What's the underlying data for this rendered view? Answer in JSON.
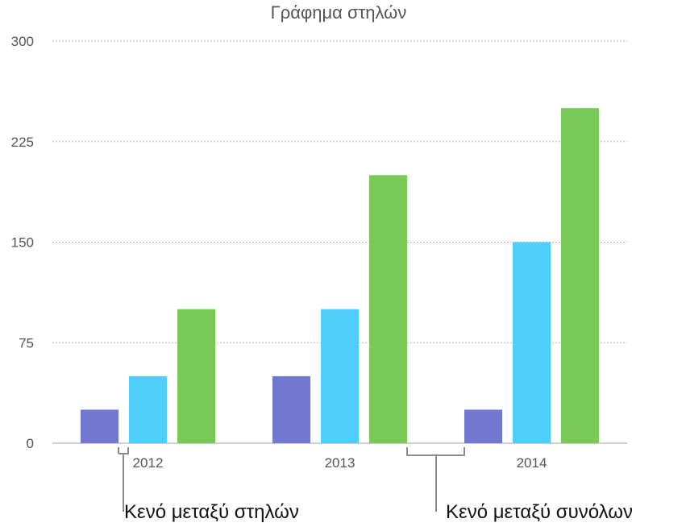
{
  "chart_data": {
    "type": "bar",
    "title": "Γράφημα στηλών",
    "categories": [
      "2012",
      "2013",
      "2014"
    ],
    "series": [
      {
        "color": "#7277cf",
        "values": [
          25,
          50,
          25
        ]
      },
      {
        "color": "#4fcdfb",
        "values": [
          50,
          100,
          150
        ]
      },
      {
        "color": "#78c955",
        "values": [
          100,
          200,
          250
        ]
      }
    ],
    "ylim": [
      0,
      300
    ],
    "yticks": [
      0,
      75,
      150,
      225,
      300
    ],
    "grid": true,
    "legend": "none",
    "annotations": [
      {
        "text": "Κενό μεταξύ στηλών",
        "target": "gap between bars in 2012"
      },
      {
        "text": "Κενό μεταξύ συνόλων",
        "target": "gap between 2013 and 2014 groups"
      }
    ]
  }
}
